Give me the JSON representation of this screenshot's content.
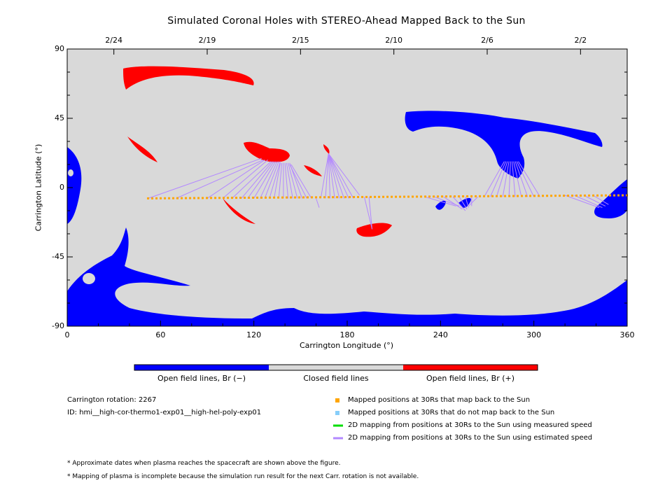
{
  "chart_data": {
    "type": "map",
    "title": "Simulated Coronal Holes with STEREO-Ahead Mapped Back to the Sun",
    "xlabel": "Carrington Longitude (°)",
    "ylabel": "Carrington Latitude (°)",
    "xlim": [
      0,
      360
    ],
    "ylim": [
      -90,
      90
    ],
    "x_ticks": [
      "0",
      "60",
      "120",
      "180",
      "240",
      "300",
      "360"
    ],
    "x_tick_values": [
      0,
      60,
      120,
      180,
      240,
      300,
      360
    ],
    "y_ticks": [
      "90",
      "45",
      "0",
      "-45",
      "-90"
    ],
    "y_tick_values": [
      90,
      45,
      0,
      -45,
      -90
    ],
    "top_date_ticks": [
      {
        "label": "2/24",
        "lon": 30
      },
      {
        "label": "2/19",
        "lon": 90
      },
      {
        "label": "2/15",
        "lon": 150
      },
      {
        "label": "2/10",
        "lon": 210
      },
      {
        "label": "2/6",
        "lon": 270
      },
      {
        "label": "2/2",
        "lon": 330
      }
    ],
    "colorbar": {
      "colors": [
        "#0000ff",
        "#d9d9d9",
        "#ff0000"
      ],
      "labels": [
        "Open field lines, Br (−)",
        "Closed field lines",
        "Open field lines, Br (+)"
      ]
    },
    "mapped_track": {
      "lon_start": 52,
      "lon_end": 360,
      "lat_start": -7,
      "lat_end": -5,
      "color": "#ffa500"
    },
    "mapping_lines": [
      {
        "from": [
          52,
          -7
        ],
        "to": [
          125,
          19
        ]
      },
      {
        "from": [
          70,
          -7
        ],
        "to": [
          126,
          18
        ]
      },
      {
        "from": [
          90,
          -7
        ],
        "to": [
          127,
          18
        ]
      },
      {
        "from": [
          100,
          -7
        ],
        "to": [
          129,
          18
        ]
      },
      {
        "from": [
          106,
          -7
        ],
        "to": [
          131,
          17
        ]
      },
      {
        "from": [
          112,
          -7
        ],
        "to": [
          132,
          17
        ]
      },
      {
        "from": [
          116,
          -7
        ],
        "to": [
          133,
          17
        ]
      },
      {
        "from": [
          120,
          -7
        ],
        "to": [
          134,
          17
        ]
      },
      {
        "from": [
          124,
          -7
        ],
        "to": [
          135,
          17
        ]
      },
      {
        "from": [
          127,
          -7
        ],
        "to": [
          136,
          17
        ]
      },
      {
        "from": [
          130,
          -7
        ],
        "to": [
          137,
          17
        ]
      },
      {
        "from": [
          133,
          -7
        ],
        "to": [
          137,
          16
        ]
      },
      {
        "from": [
          136,
          -7
        ],
        "to": [
          138,
          16
        ]
      },
      {
        "from": [
          139,
          -7
        ],
        "to": [
          139,
          16
        ]
      },
      {
        "from": [
          142,
          -7
        ],
        "to": [
          140,
          16
        ]
      },
      {
        "from": [
          145,
          -7
        ],
        "to": [
          141,
          16
        ]
      },
      {
        "from": [
          148,
          -7
        ],
        "to": [
          142,
          16
        ]
      },
      {
        "from": [
          151,
          -7
        ],
        "to": [
          143,
          16
        ]
      },
      {
        "from": [
          154,
          -7
        ],
        "to": [
          143,
          15
        ]
      },
      {
        "from": [
          157,
          -7
        ],
        "to": [
          144,
          15
        ]
      },
      {
        "from": [
          160,
          -7
        ],
        "to": [
          162,
          -13
        ]
      },
      {
        "from": [
          163,
          -7
        ],
        "to": [
          168,
          22
        ]
      },
      {
        "from": [
          166,
          -7
        ],
        "to": [
          168,
          22
        ]
      },
      {
        "from": [
          169,
          -7
        ],
        "to": [
          168,
          22
        ]
      },
      {
        "from": [
          172,
          -7
        ],
        "to": [
          168,
          22
        ]
      },
      {
        "from": [
          175,
          -7
        ],
        "to": [
          168,
          22
        ]
      },
      {
        "from": [
          178,
          -7
        ],
        "to": [
          168,
          22
        ]
      },
      {
        "from": [
          181,
          -7
        ],
        "to": [
          168,
          22
        ]
      },
      {
        "from": [
          184,
          -7
        ],
        "to": [
          168,
          22
        ]
      },
      {
        "from": [
          188,
          -5
        ],
        "to": [
          168,
          22
        ]
      },
      {
        "from": [
          191,
          -6
        ],
        "to": [
          196,
          -27
        ]
      },
      {
        "from": [
          194,
          -6
        ],
        "to": [
          196,
          -27
        ]
      },
      {
        "from": [
          230,
          -6
        ],
        "to": [
          250,
          -12
        ]
      },
      {
        "from": [
          236,
          -6
        ],
        "to": [
          252,
          -12
        ]
      },
      {
        "from": [
          242,
          -6
        ],
        "to": [
          254,
          -14
        ]
      },
      {
        "from": [
          248,
          -6
        ],
        "to": [
          256,
          -15
        ]
      },
      {
        "from": [
          252,
          -6
        ],
        "to": [
          257,
          -14
        ]
      },
      {
        "from": [
          256,
          -6
        ],
        "to": [
          258,
          -13
        ]
      },
      {
        "from": [
          260,
          -6
        ],
        "to": [
          260,
          -12
        ]
      },
      {
        "from": [
          264,
          -6
        ],
        "to": [
          258,
          -12
        ]
      },
      {
        "from": [
          268,
          -6
        ],
        "to": [
          281,
          17
        ]
      },
      {
        "from": [
          272,
          -6
        ],
        "to": [
          282,
          17
        ]
      },
      {
        "from": [
          276,
          -6
        ],
        "to": [
          283,
          17
        ]
      },
      {
        "from": [
          280,
          -6
        ],
        "to": [
          284,
          17
        ]
      },
      {
        "from": [
          284,
          -6
        ],
        "to": [
          285,
          17
        ]
      },
      {
        "from": [
          288,
          -6
        ],
        "to": [
          286,
          17
        ]
      },
      {
        "from": [
          292,
          -6
        ],
        "to": [
          287,
          17
        ]
      },
      {
        "from": [
          296,
          -6
        ],
        "to": [
          288,
          17
        ]
      },
      {
        "from": [
          300,
          -6
        ],
        "to": [
          289,
          17
        ]
      },
      {
        "from": [
          304,
          -6
        ],
        "to": [
          290,
          17
        ]
      },
      {
        "from": [
          320,
          -5
        ],
        "to": [
          342,
          -13
        ]
      },
      {
        "from": [
          326,
          -5
        ],
        "to": [
          344,
          -13
        ]
      },
      {
        "from": [
          332,
          -5
        ],
        "to": [
          346,
          -12
        ]
      },
      {
        "from": [
          338,
          -5
        ],
        "to": [
          348,
          -11
        ]
      }
    ],
    "legend_items": [
      {
        "label": "Mapped positions at 30Rs that map back to the Sun",
        "color": "#ffa500",
        "kind": "square"
      },
      {
        "label": "Mapped positions at 30Rs that do not map back to the Sun",
        "color": "#87cefa",
        "kind": "square"
      },
      {
        "label": "2D mapping from positions at 30Rs to the Sun using measured speed",
        "color": "#00dd00",
        "kind": "line"
      },
      {
        "label": "2D mapping from positions at 30Rs to the Sun using estimated speed",
        "color": "#b388ff",
        "kind": "line"
      }
    ]
  },
  "info": {
    "carrington_rotation": "Carrington rotation: 2267",
    "run_id": "ID: hmi__high-cor-thermo1-exp01__high-hel-poly-exp01"
  },
  "notes": [
    "* Approximate dates when plasma reaches the spacecraft are shown above the figure.",
    "* Mapping of plasma is incomplete because the simulation run result for the next Carr. rotation is not available."
  ]
}
